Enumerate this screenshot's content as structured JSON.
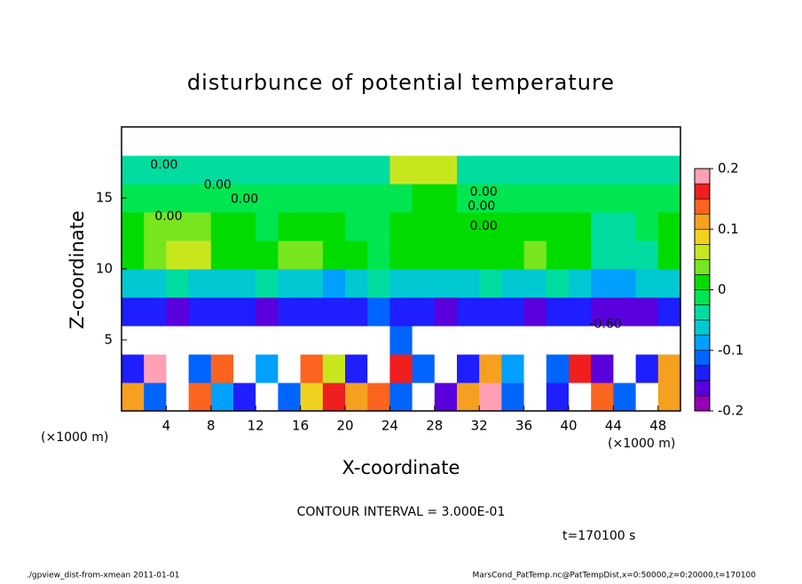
{
  "chart_data": {
    "type": "heatmap",
    "title": "disturbunce of potential temperature",
    "xlabel": "X-coordinate",
    "ylabel": "Z-coordinate",
    "x_unit": "(×1000 m)",
    "y_unit": "(×1000 m)",
    "contour_interval": "CONTOUR INTERVAL = 3.000E-01",
    "time_label": "t=170100 s",
    "footer_left": "./gpview_dist-from-xmean  2011-01-01",
    "footer_right": "MarsCond_PatTemp.nc@PatTempDist,x=0:50000,z=0:20000,t=170100",
    "xlim": [
      0,
      50
    ],
    "ylim": [
      0,
      20
    ],
    "xticks": [
      4,
      8,
      12,
      16,
      20,
      24,
      28,
      32,
      36,
      40,
      44,
      48
    ],
    "yticks": [
      5,
      10,
      15
    ],
    "x": [
      1,
      3,
      5,
      7,
      9,
      11,
      13,
      15,
      17,
      19,
      21,
      23,
      25,
      27,
      29,
      31,
      33,
      35,
      37,
      39,
      41,
      43,
      45,
      47,
      49
    ],
    "z": [
      1,
      3,
      5,
      7,
      9,
      11,
      13,
      15,
      17,
      19
    ],
    "values": [
      [
        0.12,
        -0.12,
        0.3,
        0.15,
        -0.1,
        -0.14,
        0.3,
        -0.12,
        0.08,
        0.16,
        0.1,
        0.14,
        -0.12,
        0.3,
        -0.16,
        0.12,
        0.18,
        -0.12,
        0.3,
        -0.14,
        0.3,
        0.14,
        -0.12,
        0.3,
        0.12
      ],
      [
        -0.14,
        0.18,
        0.3,
        -0.12,
        0.14,
        0.3,
        -0.1,
        0.3,
        0.14,
        0.05,
        -0.14,
        0.3,
        0.16,
        -0.12,
        0.3,
        -0.14,
        0.12,
        -0.1,
        0.3,
        -0.12,
        0.16,
        -0.16,
        0.3,
        -0.14,
        0.1
      ],
      [
        -0.25,
        -0.25,
        -0.25,
        -0.25,
        -0.25,
        -0.25,
        -0.25,
        -0.25,
        -0.25,
        -0.25,
        -0.25,
        -0.25,
        -0.12,
        -0.25,
        -0.25,
        -0.25,
        -0.25,
        -0.25,
        -0.25,
        -0.25,
        -0.25,
        -0.25,
        -0.25,
        -0.25,
        -0.25
      ],
      [
        -0.14,
        -0.15,
        -0.16,
        -0.15,
        -0.14,
        -0.15,
        -0.16,
        -0.15,
        -0.14,
        -0.13,
        -0.15,
        -0.12,
        -0.14,
        -0.15,
        -0.16,
        -0.15,
        -0.14,
        -0.15,
        -0.16,
        -0.15,
        -0.14,
        -0.16,
        -0.17,
        -0.16,
        -0.15
      ],
      [
        -0.06,
        -0.06,
        -0.05,
        -0.06,
        -0.07,
        -0.06,
        -0.05,
        -0.06,
        -0.06,
        -0.08,
        -0.06,
        -0.05,
        -0.06,
        -0.06,
        -0.07,
        -0.06,
        -0.05,
        -0.06,
        -0.06,
        -0.05,
        -0.06,
        -0.08,
        -0.09,
        -0.07,
        -0.06
      ],
      [
        0.02,
        0.04,
        0.06,
        0.05,
        0.02,
        0,
        0,
        0.03,
        0.04,
        0.02,
        0,
        -0.02,
        0,
        0.02,
        0.01,
        0.02,
        0,
        0.02,
        0.03,
        0.02,
        0.02,
        -0.04,
        -0.05,
        -0.03,
        0.02
      ],
      [
        0.02,
        0.03,
        0.04,
        0.03,
        0.01,
        0,
        -0.01,
        0,
        0,
        0,
        -0.02,
        -0.01,
        0,
        0,
        0,
        0,
        0,
        0,
        0.01,
        0,
        0,
        -0.03,
        -0.03,
        -0.02,
        0
      ],
      [
        -0.02,
        -0.02,
        -0.01,
        -0.02,
        -0.02,
        -0.02,
        -0.01,
        -0.02,
        -0.02,
        -0.02,
        -0.02,
        -0.02,
        -0.01,
        0.02,
        0,
        -0.02,
        -0.02,
        -0.02,
        -0.01,
        -0.02,
        -0.02,
        -0.02,
        -0.02,
        -0.02,
        -0.02
      ],
      [
        -0.04,
        -0.04,
        -0.03,
        -0.04,
        -0.04,
        -0.04,
        -0.03,
        -0.04,
        -0.04,
        -0.04,
        -0.04,
        -0.03,
        0.05,
        0.06,
        0.05,
        -0.03,
        -0.04,
        -0.04,
        -0.04,
        -0.04,
        -0.03,
        -0.04,
        -0.04,
        -0.04,
        -0.04
      ],
      [
        0.3,
        0.3,
        0.3,
        0.3,
        0.3,
        0.3,
        0.3,
        0.3,
        0.3,
        0.3,
        0.3,
        0.3,
        0.3,
        0.3,
        0.3,
        0.3,
        0.3,
        0.3,
        0.3,
        0.3,
        0.3,
        0.3,
        0.3,
        0.3,
        0.3
      ]
    ],
    "clim": [
      -0.2,
      0.2
    ],
    "cticks": [
      -0.2,
      -0.1,
      0,
      0.1,
      0.2
    ],
    "colors": [
      "#9600b4",
      "#5a00dc",
      "#1e1eff",
      "#0064ff",
      "#00a0ff",
      "#00c8d2",
      "#00dca0",
      "#00e650",
      "#00dc00",
      "#78e61e",
      "#c8e61e",
      "#f0d21e",
      "#f5a01e",
      "#fa641e",
      "#f01e1e",
      "#ffa0b4"
    ],
    "contour_labels": [
      {
        "label": "0.00",
        "x": 3.8,
        "z": 17.3
      },
      {
        "label": "0.00",
        "x": 8.6,
        "z": 15.9
      },
      {
        "label": "0.00",
        "x": 11,
        "z": 14.9
      },
      {
        "label": "0.00",
        "x": 4.2,
        "z": 13.7
      },
      {
        "label": "0.00",
        "x": 32.4,
        "z": 15.4
      },
      {
        "label": "0.00",
        "x": 32.2,
        "z": 14.4
      },
      {
        "label": "0.00",
        "x": 32.4,
        "z": 13
      },
      {
        "label": "-0.60",
        "x": 43.3,
        "z": 6.1
      }
    ]
  }
}
